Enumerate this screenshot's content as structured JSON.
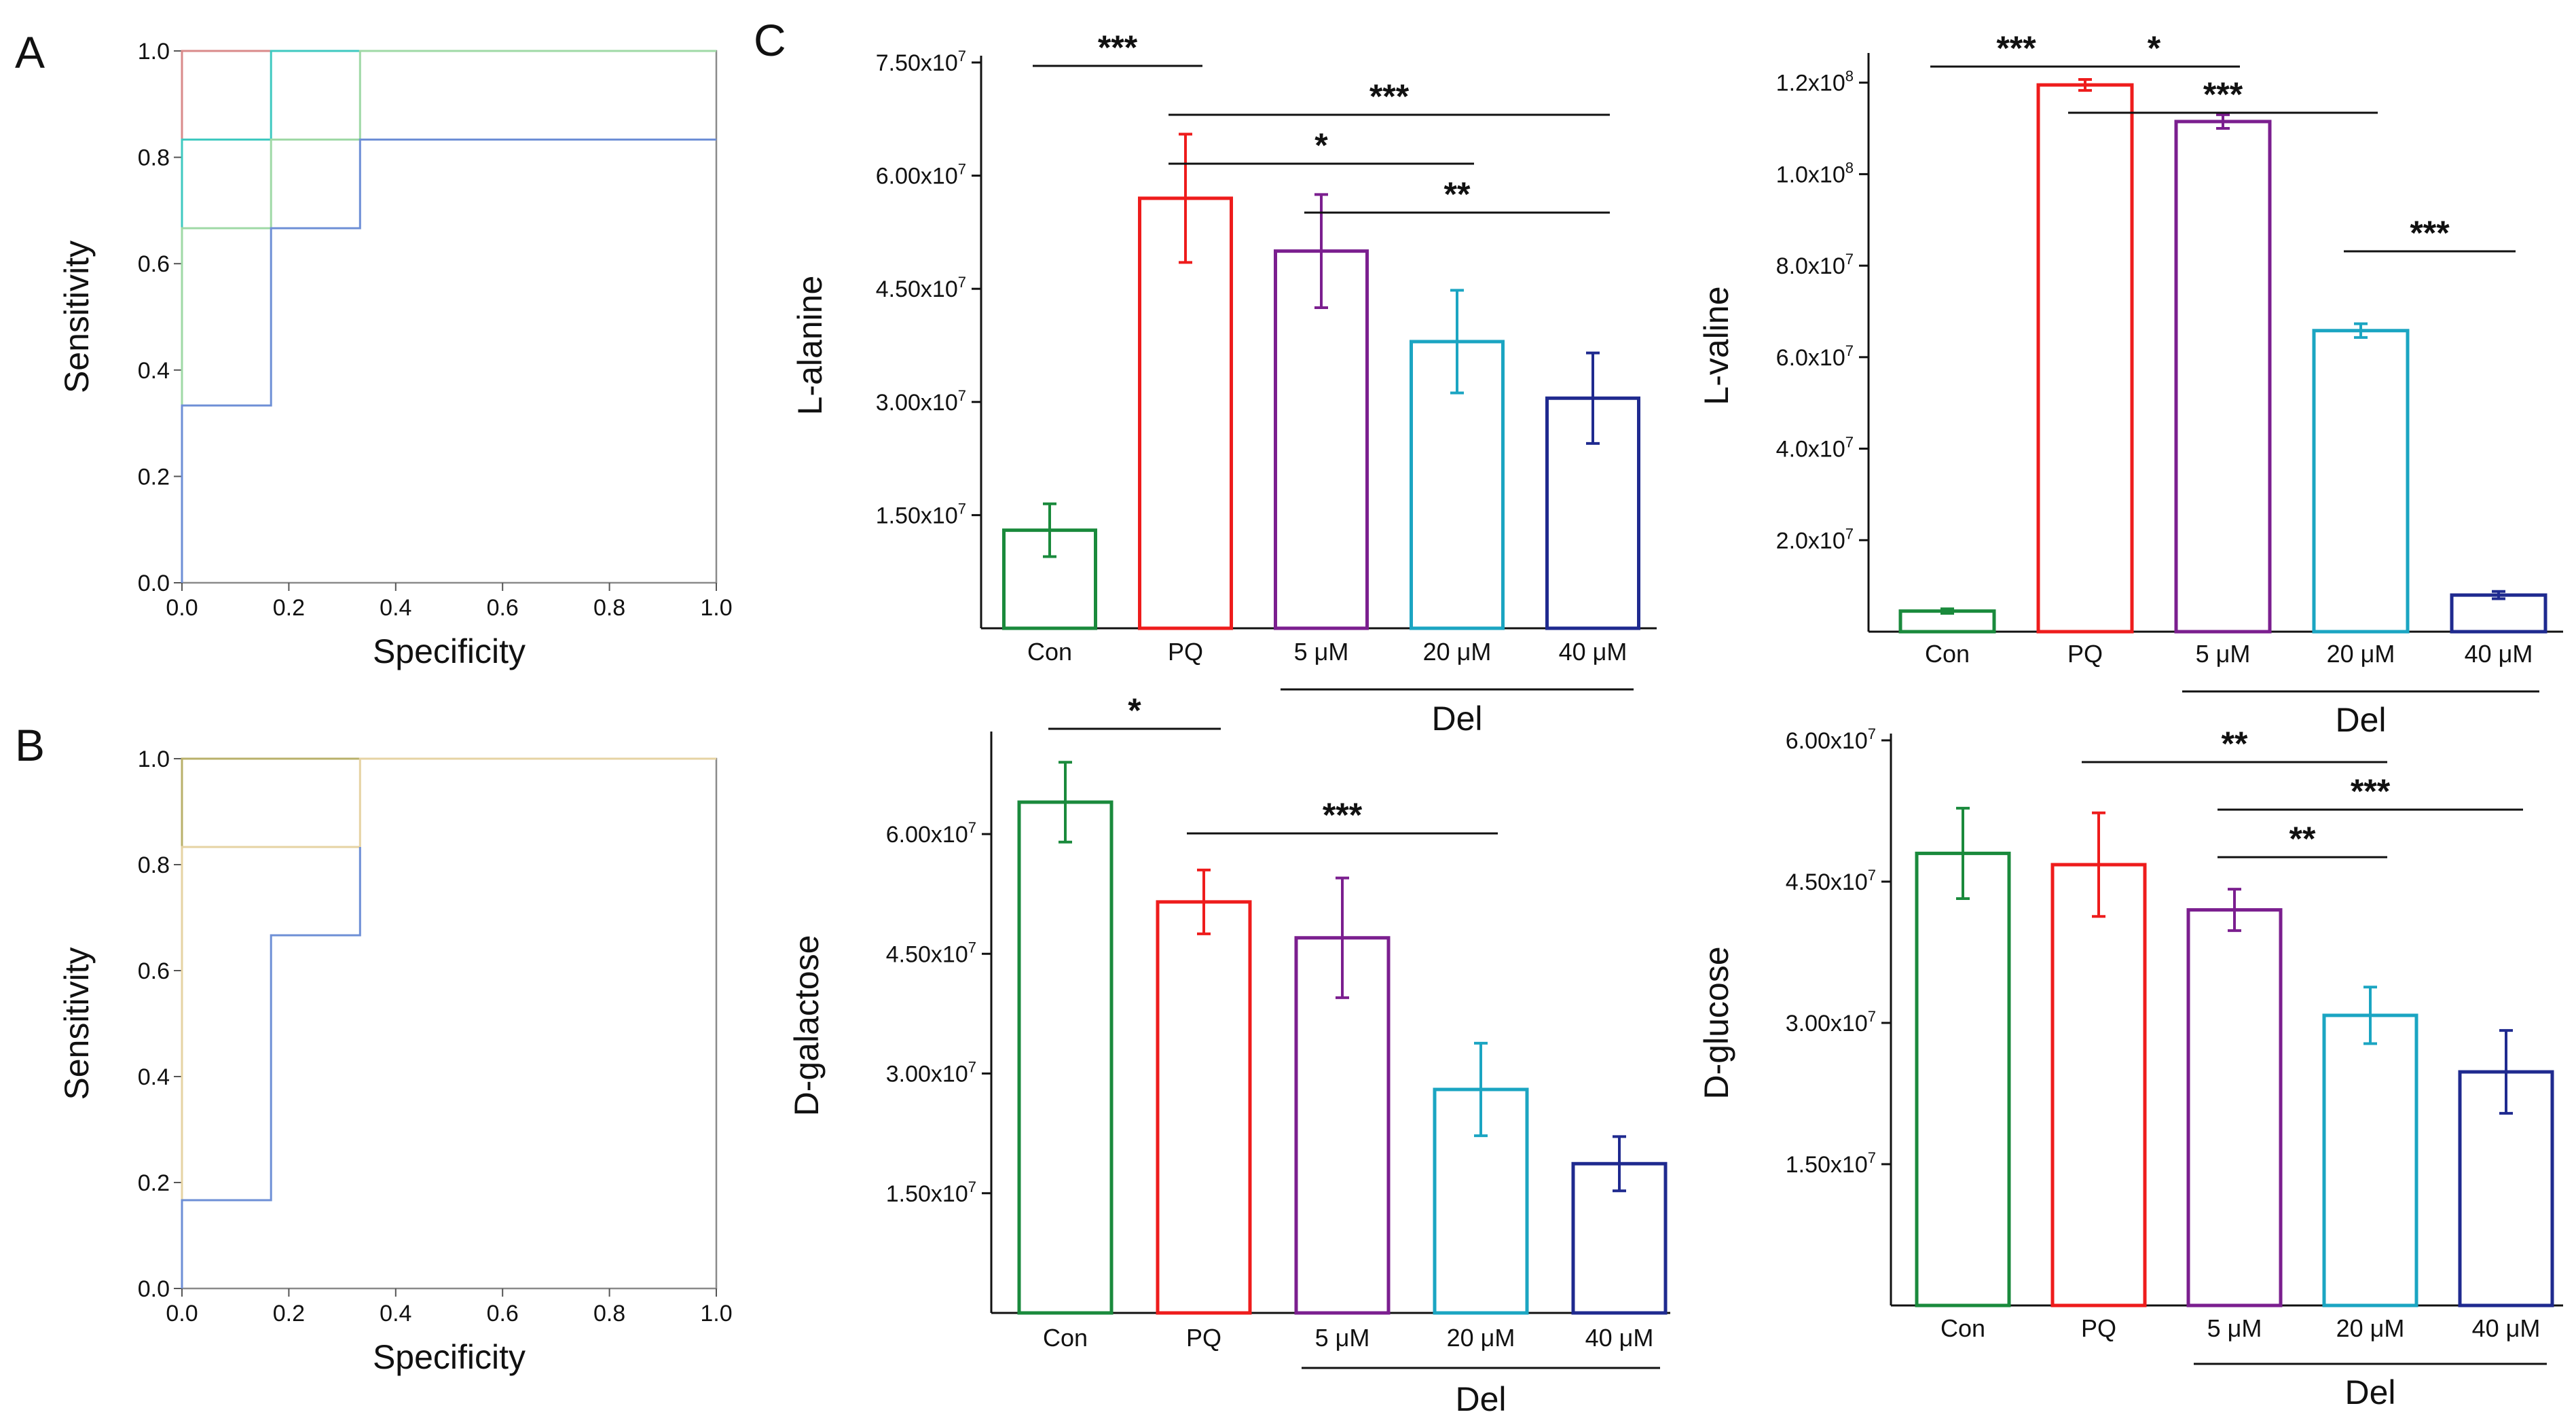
{
  "panel_labels": {
    "A": "A",
    "B": "B",
    "C": "C"
  },
  "chart_data": [
    {
      "id": "roc_A",
      "type": "line",
      "panel": "A",
      "xlabel": "Specificity",
      "ylabel": "Sensitivity",
      "xlim": [
        0,
        1
      ],
      "ylim": [
        0,
        1
      ],
      "xticks": [
        "0.0",
        "0.2",
        "0.4",
        "0.6",
        "0.8",
        "1.0"
      ],
      "yticks": [
        "0.0",
        "0.2",
        "0.4",
        "0.6",
        "0.8",
        "1.0"
      ],
      "series": [
        {
          "color": "#d98a8a",
          "x": [
            0,
            0,
            1
          ],
          "y": [
            0,
            1,
            1
          ]
        },
        {
          "color": "#3fc9c0",
          "x": [
            0,
            0,
            0.1667,
            0.1667,
            1
          ],
          "y": [
            0,
            0.8333,
            0.8333,
            1,
            1
          ]
        },
        {
          "color": "#9fd9a6",
          "x": [
            0,
            0,
            0.1667,
            0.1667,
            0.3333,
            0.3333,
            1
          ],
          "y": [
            0,
            0.6667,
            0.6667,
            0.8333,
            0.8333,
            1,
            1
          ]
        },
        {
          "color": "#6e8fd6",
          "x": [
            0,
            0,
            0.1667,
            0.1667,
            0.3333,
            0.3333,
            1
          ],
          "y": [
            0,
            0.3333,
            0.3333,
            0.6667,
            0.6667,
            0.8333,
            0.8333
          ]
        }
      ]
    },
    {
      "id": "roc_B",
      "type": "line",
      "panel": "B",
      "xlabel": "Specificity",
      "ylabel": "Sensitivity",
      "xlim": [
        0,
        1
      ],
      "ylim": [
        0,
        1
      ],
      "xticks": [
        "0.0",
        "0.2",
        "0.4",
        "0.6",
        "0.8",
        "1.0"
      ],
      "yticks": [
        "0.0",
        "0.2",
        "0.4",
        "0.6",
        "0.8",
        "1.0"
      ],
      "series": [
        {
          "color": "#b9b06a",
          "x": [
            0,
            0,
            1
          ],
          "y": [
            0,
            1,
            1
          ]
        },
        {
          "color": "#e6d3a3",
          "x": [
            0,
            0,
            0.3333,
            0.3333,
            1
          ],
          "y": [
            0,
            0.8333,
            0.8333,
            1,
            1
          ]
        },
        {
          "color": "#6e8fd6",
          "x": [
            0,
            0,
            0.1667,
            0.1667,
            0.3333,
            0.3333
          ],
          "y": [
            0,
            0.1667,
            0.1667,
            0.6667,
            0.6667,
            0.8333
          ]
        }
      ]
    },
    {
      "id": "bar_alanine",
      "type": "bar",
      "panel": "C",
      "ylabel": "L-alanine",
      "categories": [
        "Con",
        "PQ",
        "5 μM",
        "20 μM",
        "40 μM"
      ],
      "group_label": "Del",
      "values": [
        13000000,
        57000000,
        50000000,
        38000000,
        30500000
      ],
      "errors": [
        3500000,
        8500000,
        7500000,
        6800000,
        6000000
      ],
      "colors": [
        "#1a8a3c",
        "#ee1c1c",
        "#7b1f8f",
        "#1ba5c2",
        "#1f2a8f"
      ],
      "ylim": [
        0,
        75000000
      ],
      "yticks": [
        {
          "v": 15000000,
          "base": "1.50x10",
          "exp": "7"
        },
        {
          "v": 30000000,
          "base": "3.00x10",
          "exp": "7"
        },
        {
          "v": 45000000,
          "base": "4.50x10",
          "exp": "7"
        },
        {
          "v": 60000000,
          "base": "6.00x10",
          "exp": "7"
        },
        {
          "v": 75000000,
          "base": "7.50x10",
          "exp": "7"
        }
      ],
      "significance": [
        {
          "from": 0,
          "to": 1,
          "label": "***",
          "level": 0
        },
        {
          "from": 1,
          "to": 4,
          "label": "***",
          "level": 1
        },
        {
          "from": 1,
          "to": 3,
          "label": "*",
          "level": 2
        },
        {
          "from": 2,
          "to": 4,
          "label": "**",
          "level": 3
        }
      ]
    },
    {
      "id": "bar_valine",
      "type": "bar",
      "panel": "C",
      "ylabel": "L-valine",
      "categories": [
        "Con",
        "PQ",
        "5 μM",
        "20 μM",
        "40 μM"
      ],
      "group_label": "Del",
      "values": [
        4500000,
        119500000,
        111500000,
        65800000,
        8000000
      ],
      "errors": [
        500000,
        1200000,
        1500000,
        1500000,
        800000
      ],
      "colors": [
        "#1a8a3c",
        "#ee1c1c",
        "#7b1f8f",
        "#1ba5c2",
        "#1f2a8f"
      ],
      "ylim": [
        0,
        125000000
      ],
      "yticks": [
        {
          "v": 20000000,
          "base": "2.0x10",
          "exp": "7"
        },
        {
          "v": 40000000,
          "base": "4.0x10",
          "exp": "7"
        },
        {
          "v": 60000000,
          "base": "6.0x10",
          "exp": "7"
        },
        {
          "v": 80000000,
          "base": "8.0x10",
          "exp": "7"
        },
        {
          "v": 100000000,
          "base": "1.0x10",
          "exp": "8"
        },
        {
          "v": 120000000,
          "base": "1.2x10",
          "exp": "8"
        }
      ],
      "significance": [
        {
          "from": 0,
          "to": 1,
          "label": "***",
          "level": 0
        },
        {
          "from": 1,
          "to": 3,
          "label": "***",
          "level": 1
        },
        {
          "from": 1,
          "to": 2,
          "label": "*",
          "level": 0
        },
        {
          "from": 3,
          "to": 4,
          "label": "***",
          "level": 4
        }
      ]
    },
    {
      "id": "bar_galactose",
      "type": "bar",
      "panel": "C",
      "ylabel": "D-galactose",
      "categories": [
        "Con",
        "PQ",
        "5 μM",
        "20 μM",
        "40 μM"
      ],
      "group_label": "Del",
      "values": [
        64000000,
        51500000,
        47000000,
        28000000,
        18700000
      ],
      "errors": [
        5000000,
        4000000,
        7500000,
        5800000,
        3400000
      ],
      "colors": [
        "#1a8a3c",
        "#ee1c1c",
        "#7b1f8f",
        "#1ba5c2",
        "#1f2a8f"
      ],
      "ylim": [
        0,
        72000000
      ],
      "yticks": [
        {
          "v": 15000000,
          "base": "1.50x10",
          "exp": "7"
        },
        {
          "v": 30000000,
          "base": "3.00x10",
          "exp": "7"
        },
        {
          "v": 45000000,
          "base": "4.50x10",
          "exp": "7"
        },
        {
          "v": 60000000,
          "base": "6.00x10",
          "exp": "7"
        }
      ],
      "significance": [
        {
          "from": 0,
          "to": 1,
          "label": "*",
          "level": 0
        },
        {
          "from": 1,
          "to": 3,
          "label": "***",
          "level": 1
        }
      ]
    },
    {
      "id": "bar_glucose",
      "type": "bar",
      "panel": "C",
      "ylabel": "D-glucose",
      "categories": [
        "Con",
        "PQ",
        "5 μM",
        "20 μM",
        "40 μM"
      ],
      "group_label": "Del",
      "values": [
        48000000,
        46800000,
        42000000,
        30800000,
        24800000
      ],
      "errors": [
        4800000,
        5500000,
        2200000,
        3000000,
        4400000
      ],
      "colors": [
        "#1a8a3c",
        "#ee1c1c",
        "#7b1f8f",
        "#1ba5c2",
        "#1f2a8f"
      ],
      "ylim": [
        0,
        60000000
      ],
      "yticks": [
        {
          "v": 15000000,
          "base": "1.50x10",
          "exp": "7"
        },
        {
          "v": 30000000,
          "base": "3.00x10",
          "exp": "7"
        },
        {
          "v": 45000000,
          "base": "4.50x10",
          "exp": "7"
        },
        {
          "v": 60000000,
          "base": "6.00x10",
          "exp": "7"
        }
      ],
      "significance": [
        {
          "from": 1,
          "to": 3,
          "label": "**",
          "level": 0
        },
        {
          "from": 2,
          "to": 4,
          "label": "***",
          "level": 1
        },
        {
          "from": 2,
          "to": 3,
          "label": "**",
          "level": 2
        }
      ]
    }
  ]
}
